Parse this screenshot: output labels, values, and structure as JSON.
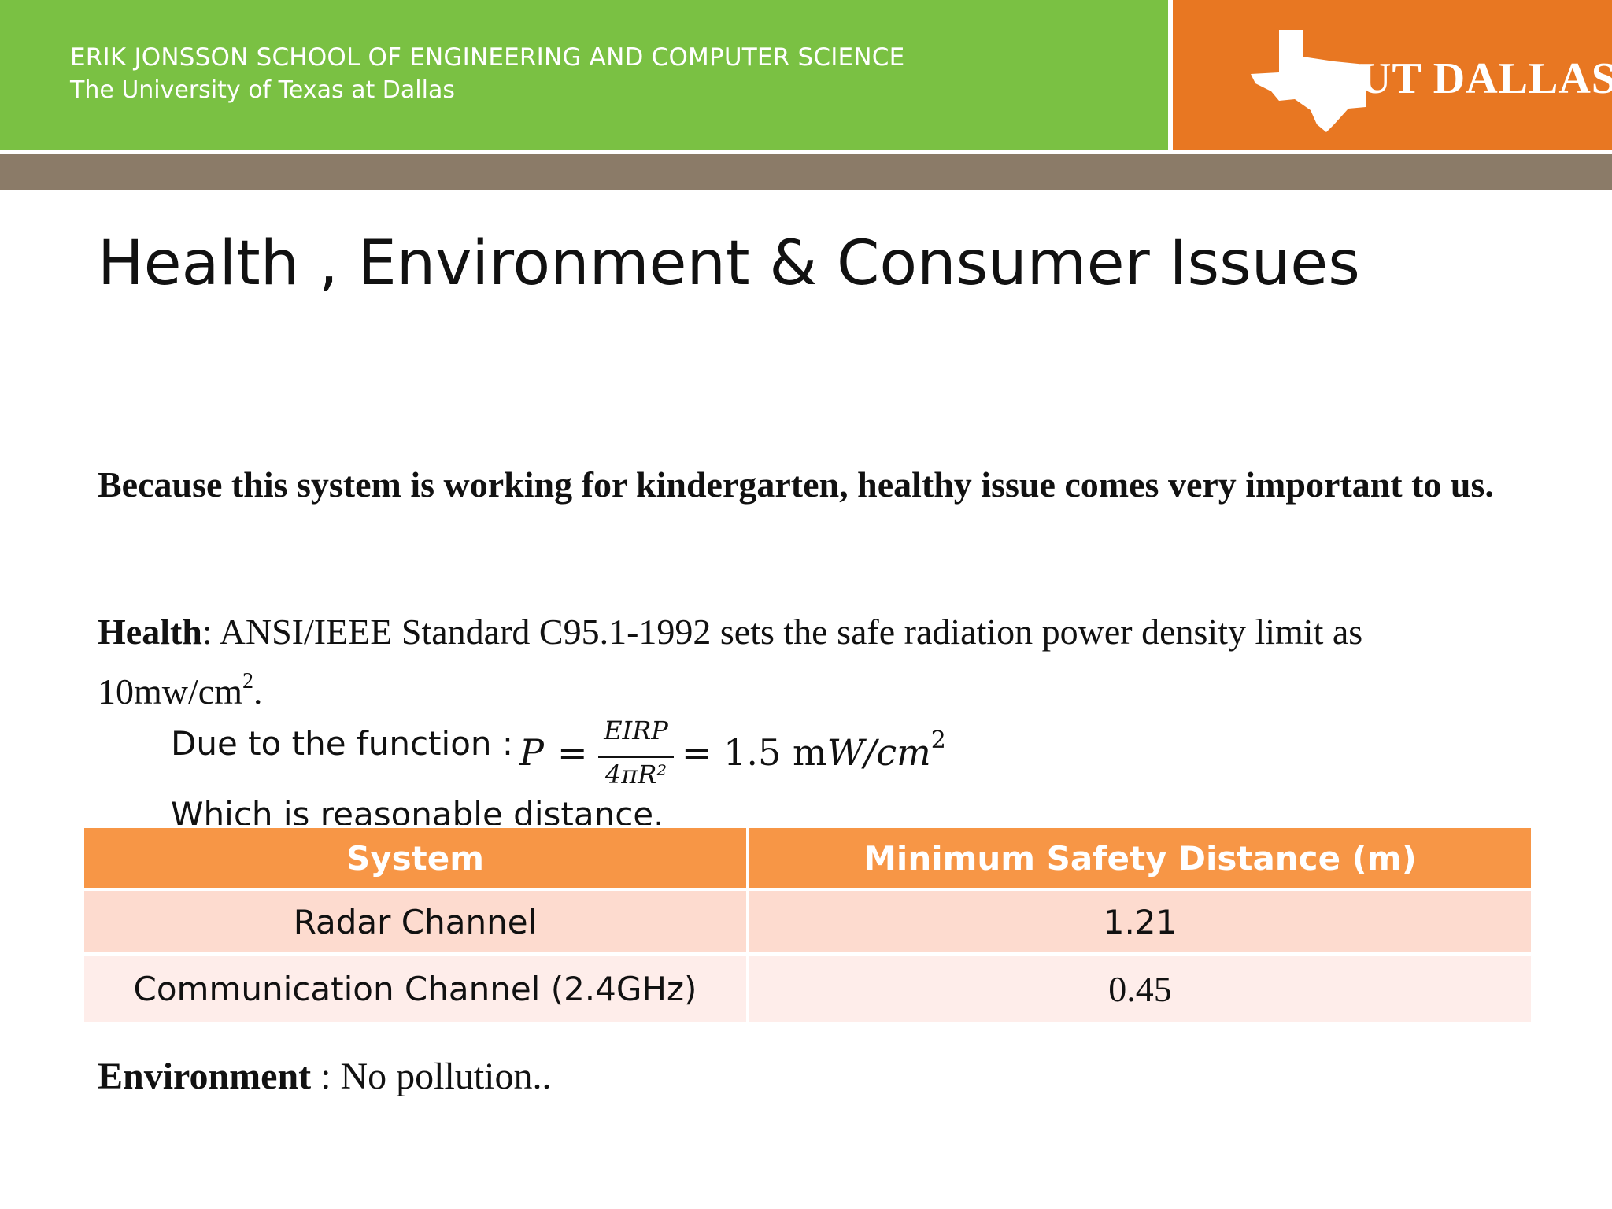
{
  "header": {
    "school": "ERIK JONSSON SCHOOL OF ENGINEERING AND COMPUTER SCIENCE",
    "university": "The University of Texas at Dallas",
    "logo_text": "UT DALLAS",
    "colors": {
      "green": "#7ac143",
      "orange": "#e87722",
      "brown_bar": "#8b7b68"
    }
  },
  "slide": {
    "title": "Health , Environment & Consumer Issues",
    "intro": "Because this system is working for kindergarten, healthy issue comes very important to us.",
    "health": {
      "label": "Health",
      "text": ":  ANSI/IEEE Standard C95.1-1992 sets the safe radiation power density limit as 10mw/cm",
      "sup": "2",
      "end": "."
    },
    "function": {
      "intro": "Due to the function : ",
      "lhs": "P",
      "eq": "=",
      "numerator": "EIRP",
      "denominator": "4πR²",
      "rhs_value": "= 1.5 m",
      "rhs_unit": "W/cm",
      "rhs_sup": "2"
    },
    "reasonable": "Which is reasonable distance.",
    "table": {
      "headers": [
        "System",
        "Minimum Safety Distance (m)"
      ],
      "rows": [
        [
          "Radar Channel",
          "1.21"
        ],
        [
          "Communication Channel (2.4GHz)",
          "0.45"
        ]
      ],
      "colors": {
        "header": "#f79646",
        "row1": "#fddbcf",
        "row2": "#feedea"
      }
    },
    "environment": {
      "label": "Environment",
      "text": " : No pollution.."
    }
  }
}
